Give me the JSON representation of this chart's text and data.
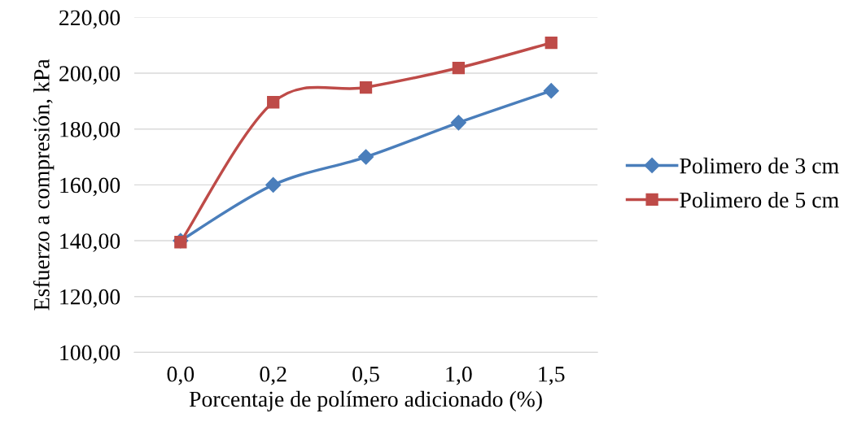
{
  "chart_data": {
    "type": "line",
    "xlabel": "Porcentaje de polímero adicionado (%)",
    "ylabel": "Esfuerzo a compresión, kPa",
    "categories": [
      "0,0",
      "0,2",
      "0,5",
      "1,0",
      "1,5"
    ],
    "series": [
      {
        "name": "Polimero de 3 cm",
        "color": "#4a7ebb",
        "marker": "diamond",
        "values": [
          140,
          160,
          170,
          182.3,
          193.7
        ]
      },
      {
        "name": "Polimero de 5 cm",
        "color": "#be4b48",
        "marker": "square",
        "values": [
          139.5,
          189.6,
          194.9,
          201.9,
          210.9
        ]
      }
    ],
    "ylim": [
      100,
      220
    ],
    "yticks": [
      {
        "value": 100,
        "label": "100,00"
      },
      {
        "value": 120,
        "label": "120,00"
      },
      {
        "value": 140,
        "label": "140,00"
      },
      {
        "value": 160,
        "label": "160,00"
      },
      {
        "value": 180,
        "label": "180,00"
      },
      {
        "value": 200,
        "label": "200,00"
      },
      {
        "value": 220,
        "label": "220,00"
      }
    ],
    "grid": "y",
    "legend": "right",
    "line_style": "solid"
  }
}
